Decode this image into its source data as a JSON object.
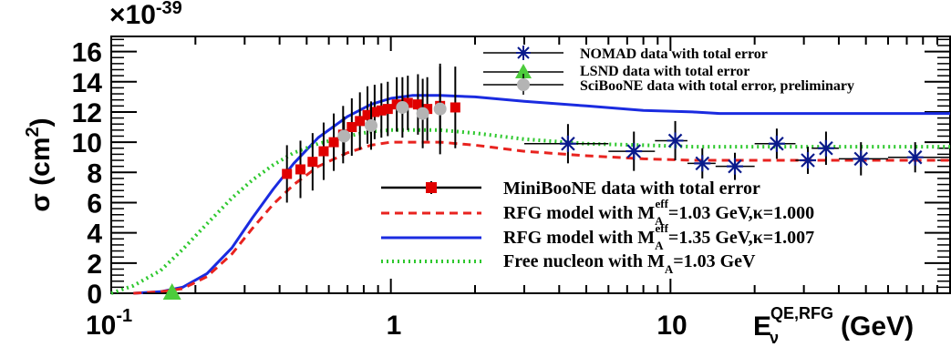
{
  "chart_data": {
    "type": "line",
    "xlabel_main": "E",
    "xlabel_sub": "ν",
    "xlabel_sup": "QE,RFG",
    "xlabel_unit": "(GeV)",
    "ylabel_main": "σ (cm",
    "ylabel_sup": "2",
    "ylabel_close": ")",
    "y_exponent_label": "×10",
    "y_exponent": "-39",
    "x_scale": "log",
    "xlim": [
      0.1,
      100
    ],
    "ylim": [
      0,
      17
    ],
    "x_ticks": [
      0.1,
      1,
      10
    ],
    "x_tick_labels": {
      "base": "10",
      "exp": "-1",
      "one": "1",
      "ten": "10"
    },
    "y_tick_labels": [
      "0",
      "2",
      "4",
      "6",
      "8",
      "10",
      "12",
      "14",
      "16"
    ],
    "y_ticks": [
      0,
      2,
      4,
      6,
      8,
      10,
      12,
      14,
      16
    ],
    "grid": false,
    "legend_top": [
      {
        "label": "NOMAD data with total error",
        "marker": "star",
        "color": "#0a1a8c"
      },
      {
        "label": "LSND data with total error",
        "marker": "triangle",
        "color": "#4ccc3c"
      },
      {
        "label": "SciBooNE data with total error, preliminary",
        "marker": "circle",
        "color": "#b4b4b4"
      }
    ],
    "legend_bottom": [
      {
        "label_pre": "MiniBooNE data with total error",
        "marker": "square",
        "color": "#e00000",
        "style": "solid-black"
      },
      {
        "label_pre": "RFG model with M",
        "label_sub": "A",
        "label_sup": "eff",
        "label_post": "=1.03 GeV,κ=1.000",
        "color": "#e8231f",
        "style": "dashed"
      },
      {
        "label_pre": "RFG model with M",
        "label_sub": "A",
        "label_sup": "eff",
        "label_post": "=1.35 GeV,κ=1.007",
        "color": "#1a2be0",
        "style": "solid"
      },
      {
        "label_pre": "Free nucleon with M",
        "label_sub": "A",
        "label_post": "=1.03 GeV",
        "color": "#2ec82e",
        "style": "dotted"
      }
    ],
    "series": [
      {
        "name": "RFG model with M_A^eff=1.35 GeV,κ=1.007",
        "kind": "curve",
        "color": "#1a2be0",
        "style": "solid",
        "x": [
          0.12,
          0.15,
          0.18,
          0.22,
          0.27,
          0.32,
          0.38,
          0.45,
          0.55,
          0.7,
          0.85,
          1.0,
          1.2,
          1.5,
          2.0,
          3.0,
          5.0,
          8.0,
          12.0,
          15.0,
          20.0,
          30.0,
          60.0,
          100.0
        ],
        "y": [
          0.0,
          0.1,
          0.4,
          1.3,
          3.0,
          5.0,
          6.9,
          8.6,
          10.3,
          11.7,
          12.5,
          12.9,
          13.1,
          13.1,
          13.0,
          12.7,
          12.4,
          12.1,
          12.0,
          11.9,
          11.9,
          11.9,
          11.9,
          11.9
        ]
      },
      {
        "name": "RFG model with M_A^eff=1.03 GeV,κ=1.000",
        "kind": "curve",
        "color": "#e8231f",
        "style": "dashed",
        "x": [
          0.12,
          0.15,
          0.18,
          0.22,
          0.27,
          0.32,
          0.38,
          0.45,
          0.55,
          0.7,
          0.85,
          1.0,
          1.2,
          1.5,
          2.0,
          3.0,
          5.0,
          8.0,
          12.0,
          15.0,
          20.0,
          30.0,
          60.0,
          100.0
        ],
        "y": [
          0.0,
          0.1,
          0.3,
          1.1,
          2.6,
          4.3,
          5.9,
          7.2,
          8.4,
          9.3,
          9.8,
          10.0,
          10.0,
          10.0,
          9.8,
          9.4,
          9.1,
          8.9,
          8.8,
          8.8,
          8.8,
          8.8,
          8.8,
          8.8
        ]
      },
      {
        "name": "Free nucleon with M_A=1.03 GeV",
        "kind": "curve",
        "color": "#2ec82e",
        "style": "dotted",
        "x": [
          0.1,
          0.12,
          0.15,
          0.18,
          0.22,
          0.27,
          0.32,
          0.38,
          0.45,
          0.55,
          0.7,
          0.85,
          1.0,
          1.2,
          1.5,
          2.0,
          3.0,
          5.0,
          8.0,
          12.0,
          15.0,
          20.0,
          30.0,
          60.0,
          100.0
        ],
        "y": [
          0.0,
          0.5,
          1.5,
          2.9,
          4.6,
          6.3,
          7.5,
          8.5,
          9.3,
          9.9,
          10.4,
          10.7,
          10.8,
          10.8,
          10.8,
          10.6,
          10.2,
          9.9,
          9.8,
          9.7,
          9.7,
          9.7,
          9.7,
          9.7,
          9.7
        ]
      },
      {
        "name": "MiniBooNE data with total error",
        "kind": "points",
        "marker": "square",
        "color": "#e00000",
        "x": [
          0.425,
          0.475,
          0.525,
          0.575,
          0.625,
          0.675,
          0.725,
          0.775,
          0.825,
          0.875,
          0.925,
          0.975,
          1.05,
          1.15,
          1.25,
          1.35,
          1.5,
          1.7
        ],
        "y": [
          7.9,
          8.2,
          8.7,
          9.4,
          10.0,
          10.5,
          11.0,
          11.4,
          11.8,
          12.0,
          12.1,
          12.2,
          12.5,
          12.6,
          12.5,
          12.2,
          12.4,
          12.3
        ],
        "yerr": [
          1.9,
          1.9,
          1.9,
          1.9,
          1.9,
          1.9,
          1.9,
          1.9,
          1.9,
          1.8,
          1.8,
          1.8,
          1.8,
          1.8,
          2.0,
          2.1,
          2.6,
          2.7
        ]
      },
      {
        "name": "SciBooNE data with total error, preliminary",
        "kind": "points",
        "marker": "circle",
        "color": "#b4b4b4",
        "x": [
          0.68,
          0.85,
          1.1,
          1.3,
          1.5
        ],
        "y": [
          10.4,
          11.1,
          12.3,
          11.9,
          12.2
        ],
        "yerr": [
          1.3,
          1.6,
          2.0,
          2.3,
          3.0
        ]
      },
      {
        "name": "NOMAD data with total error",
        "kind": "points",
        "marker": "star",
        "color": "#0a1a8c",
        "x": [
          4.3,
          7.4,
          10.4,
          13.0,
          17.0,
          24.0,
          31.0,
          36.0,
          48.0,
          75.0
        ],
        "y": [
          9.9,
          9.4,
          10.1,
          8.6,
          8.4,
          9.9,
          8.8,
          9.6,
          8.9,
          9.0
        ],
        "yerr": [
          1.3,
          1.3,
          1.3,
          1.0,
          0.9,
          1.0,
          0.9,
          1.1,
          1.1,
          1.0
        ],
        "xlo": [
          3.0,
          6.0,
          8.8,
          11.5,
          14.5,
          20.0,
          28.0,
          32.0,
          40.0,
          60.0
        ],
        "xhi": [
          6.0,
          8.8,
          11.5,
          14.5,
          20.0,
          28.0,
          32.0,
          40.0,
          60.0,
          100.0
        ]
      },
      {
        "name": "LSND data with total error",
        "kind": "points",
        "marker": "triangle",
        "color": "#4ccc3c",
        "x": [
          0.165
        ],
        "y": [
          0.0
        ],
        "xlo": [
          0.13
        ],
        "xhi": [
          0.22
        ]
      }
    ]
  }
}
